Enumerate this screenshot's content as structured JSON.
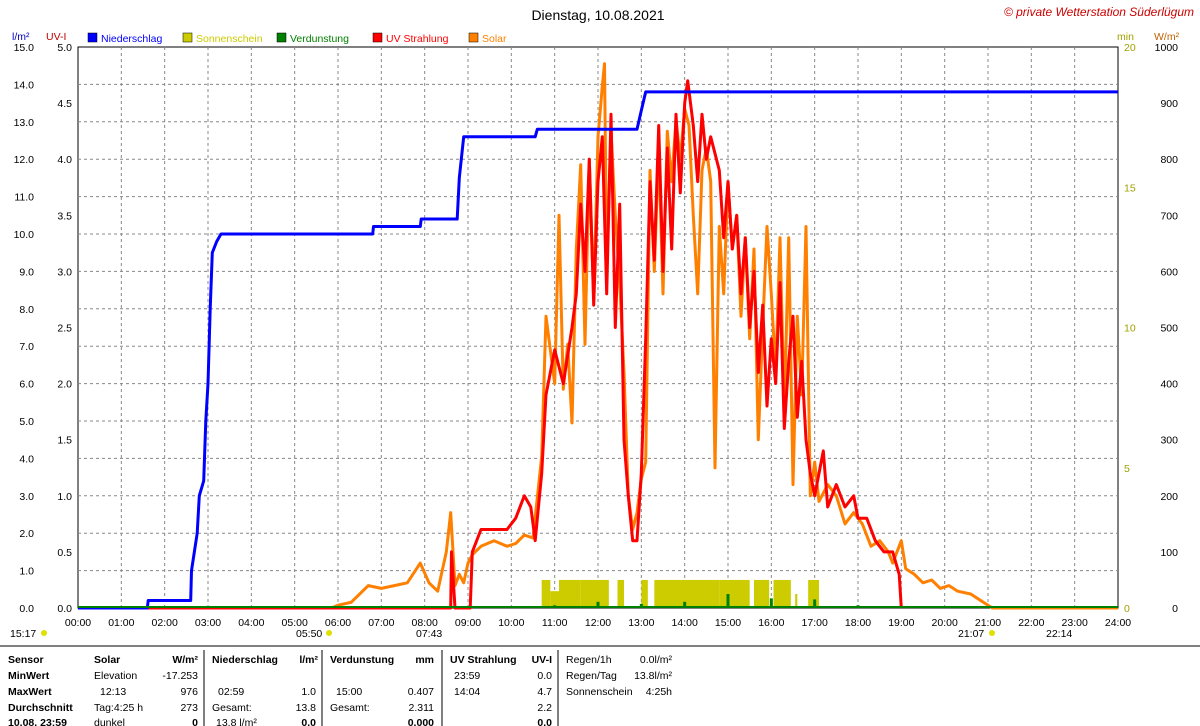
{
  "header": {
    "title": "Dienstag, 10.08.2021",
    "copyright": "© private Wetterstation Süderlügum"
  },
  "axes": {
    "left1_unit": "l/m²",
    "left2_unit": "UV-I",
    "right1_unit": "min",
    "right2_unit": "W/m²",
    "left1_ticks": [
      "0.0",
      "1.0",
      "2.0",
      "3.0",
      "4.0",
      "5.0",
      "6.0",
      "7.0",
      "8.0",
      "9.0",
      "10.0",
      "11.0",
      "12.0",
      "13.0",
      "14.0",
      "15.0"
    ],
    "left2_ticks": [
      "0.0",
      "0.5",
      "1.0",
      "1.5",
      "2.0",
      "2.5",
      "3.0",
      "3.5",
      "4.0",
      "4.5",
      "5.0"
    ],
    "right1_ticks": [
      "0",
      "5",
      "10",
      "15",
      "20"
    ],
    "right2_ticks": [
      "0",
      "100",
      "200",
      "300",
      "400",
      "500",
      "600",
      "700",
      "800",
      "900",
      "1000"
    ],
    "x_ticks": [
      "00:00",
      "01:00",
      "02:00",
      "03:00",
      "04:00",
      "05:00",
      "06:00",
      "07:00",
      "08:00",
      "09:00",
      "10:00",
      "11:00",
      "12:00",
      "13:00",
      "14:00",
      "15:00",
      "16:00",
      "17:00",
      "18:00",
      "19:00",
      "20:00",
      "21:00",
      "22:00",
      "23:00",
      "24:00"
    ]
  },
  "legend": [
    {
      "label": "Niederschlag",
      "color": "#0000ff"
    },
    {
      "label": "Sonnenschein",
      "color": "#cccc00"
    },
    {
      "label": "Verdunstung",
      "color": "#008000"
    },
    {
      "label": "UV Strahlung",
      "color": "#ff0000"
    },
    {
      "label": "Solar",
      "color": "#ff8000"
    }
  ],
  "markers": {
    "moonrise": "15:17",
    "sunrise": "05:50",
    "twilight": "07:43",
    "sunset": "21:07",
    "moonset": "22:14"
  },
  "table": {
    "col_solar": {
      "title": "Solar",
      "unit": "W/m²",
      "rows": [
        [
          "Elevation",
          "-17.253"
        ],
        [
          "12:13",
          "976"
        ],
        [
          "Tag:4:25 h",
          "273"
        ],
        [
          "dunkel",
          "0"
        ]
      ]
    },
    "col_rain": {
      "title": "Niederschlag",
      "unit": "l/m²",
      "rows": [
        [
          "",
          ""
        ],
        [
          "02:59",
          "1.0"
        ],
        [
          "Gesamt:",
          "13.8"
        ],
        [
          "13.8 l/m²",
          "0.0"
        ]
      ]
    },
    "col_evap": {
      "title": "Verdunstung",
      "unit": "mm",
      "rows": [
        [
          "",
          ""
        ],
        [
          "15:00",
          "0.407"
        ],
        [
          "Gesamt:",
          "2.311"
        ],
        [
          "",
          "0.000"
        ]
      ]
    },
    "col_uv": {
      "title": "UV Strahlung",
      "unit": "UV-I",
      "rows": [
        [
          "23:59",
          "0.0"
        ],
        [
          "14:04",
          "4.7"
        ],
        [
          "",
          "2.2"
        ],
        [
          "",
          "0.0"
        ]
      ]
    },
    "col_info": {
      "rows": [
        [
          "Regen/1h",
          "0.0l/m²"
        ],
        [
          "Regen/Tag",
          "13.8l/m²"
        ],
        [
          "Sonnenschein",
          "4:25h"
        ]
      ]
    },
    "row_labels": [
      "Sensor",
      "MinWert",
      "MaxWert",
      "Durchschnitt",
      "10.08. 23:59"
    ]
  },
  "chart_data": {
    "type": "line",
    "title": "Dienstag, 10.08.2021",
    "x_unit": "hour",
    "xlim": [
      0,
      24
    ],
    "series": [
      {
        "name": "Niederschlag",
        "unit": "l/m²",
        "color": "#0000ff",
        "ylim": [
          0,
          15
        ],
        "points": [
          [
            0,
            0
          ],
          [
            1.6,
            0
          ],
          [
            1.62,
            0.2
          ],
          [
            2.6,
            0.2
          ],
          [
            2.62,
            1.0
          ],
          [
            2.75,
            2.0
          ],
          [
            2.8,
            3.0
          ],
          [
            2.9,
            3.4
          ],
          [
            2.95,
            5.0
          ],
          [
            3.0,
            6.0
          ],
          [
            3.05,
            8.0
          ],
          [
            3.1,
            9.5
          ],
          [
            3.2,
            9.8
          ],
          [
            3.3,
            10.0
          ],
          [
            6.8,
            10.0
          ],
          [
            6.82,
            10.2
          ],
          [
            7.9,
            10.2
          ],
          [
            7.92,
            10.4
          ],
          [
            8.75,
            10.4
          ],
          [
            8.8,
            11.5
          ],
          [
            8.9,
            12.6
          ],
          [
            10.55,
            12.6
          ],
          [
            10.6,
            12.8
          ],
          [
            12.9,
            12.8
          ],
          [
            13.0,
            13.3
          ],
          [
            13.1,
            13.8
          ],
          [
            24,
            13.8
          ]
        ]
      },
      {
        "name": "UV Strahlung",
        "unit": "UV-I",
        "color": "#ff0000",
        "ylim": [
          0,
          5
        ],
        "points": [
          [
            0,
            0
          ],
          [
            8.6,
            0
          ],
          [
            8.62,
            0.5
          ],
          [
            8.7,
            0
          ],
          [
            9.05,
            0
          ],
          [
            9.1,
            0.5
          ],
          [
            9.3,
            0.7
          ],
          [
            9.9,
            0.7
          ],
          [
            10.1,
            0.8
          ],
          [
            10.3,
            1.0
          ],
          [
            10.45,
            0.9
          ],
          [
            10.55,
            0.6
          ],
          [
            10.7,
            1.2
          ],
          [
            10.8,
            1.9
          ],
          [
            11.0,
            2.3
          ],
          [
            11.2,
            2.0
          ],
          [
            11.4,
            2.5
          ],
          [
            11.5,
            2.8
          ],
          [
            11.6,
            3.6
          ],
          [
            11.7,
            3.0
          ],
          [
            11.8,
            4.0
          ],
          [
            11.9,
            2.7
          ],
          [
            12.0,
            3.8
          ],
          [
            12.1,
            4.2
          ],
          [
            12.2,
            2.8
          ],
          [
            12.3,
            4.4
          ],
          [
            12.4,
            2.5
          ],
          [
            12.5,
            3.6
          ],
          [
            12.6,
            1.5
          ],
          [
            12.7,
            1.0
          ],
          [
            12.8,
            0.6
          ],
          [
            12.9,
            0.6
          ],
          [
            13.0,
            1.2
          ],
          [
            13.1,
            2.4
          ],
          [
            13.2,
            3.8
          ],
          [
            13.3,
            3.1
          ],
          [
            13.4,
            4.3
          ],
          [
            13.5,
            3.0
          ],
          [
            13.6,
            4.1
          ],
          [
            13.7,
            3.2
          ],
          [
            13.8,
            4.4
          ],
          [
            13.9,
            3.7
          ],
          [
            14.0,
            4.5
          ],
          [
            14.07,
            4.7
          ],
          [
            14.2,
            4.3
          ],
          [
            14.3,
            3.8
          ],
          [
            14.4,
            4.4
          ],
          [
            14.5,
            4.0
          ],
          [
            14.6,
            4.2
          ],
          [
            14.8,
            3.9
          ],
          [
            14.9,
            3.3
          ],
          [
            15.0,
            3.8
          ],
          [
            15.1,
            3.2
          ],
          [
            15.2,
            3.5
          ],
          [
            15.3,
            2.8
          ],
          [
            15.4,
            3.3
          ],
          [
            15.5,
            2.5
          ],
          [
            15.6,
            3.0
          ],
          [
            15.7,
            2.1
          ],
          [
            15.8,
            2.7
          ],
          [
            15.9,
            1.8
          ],
          [
            16.0,
            2.4
          ],
          [
            16.1,
            2.0
          ],
          [
            16.2,
            2.9
          ],
          [
            16.3,
            1.6
          ],
          [
            16.4,
            2.2
          ],
          [
            16.5,
            2.6
          ],
          [
            16.6,
            1.7
          ],
          [
            16.7,
            2.2
          ],
          [
            16.8,
            1.5
          ],
          [
            16.9,
            1.2
          ],
          [
            17.0,
            1.0
          ],
          [
            17.2,
            1.4
          ],
          [
            17.3,
            0.9
          ],
          [
            17.5,
            1.1
          ],
          [
            17.7,
            0.9
          ],
          [
            17.9,
            1.0
          ],
          [
            18.0,
            0.8
          ],
          [
            18.2,
            0.8
          ],
          [
            18.4,
            0.6
          ],
          [
            18.6,
            0.5
          ],
          [
            18.8,
            0.5
          ],
          [
            18.95,
            0.3
          ],
          [
            19.0,
            0
          ]
        ]
      },
      {
        "name": "Solar",
        "unit": "W/m²",
        "color": "#ff8000",
        "ylim": [
          0,
          1000
        ],
        "points": [
          [
            0,
            0
          ],
          [
            5.85,
            0
          ],
          [
            6.0,
            5
          ],
          [
            6.3,
            10
          ],
          [
            6.5,
            25
          ],
          [
            6.7,
            40
          ],
          [
            7.0,
            35
          ],
          [
            7.3,
            40
          ],
          [
            7.6,
            45
          ],
          [
            7.9,
            80
          ],
          [
            8.1,
            45
          ],
          [
            8.3,
            30
          ],
          [
            8.5,
            100
          ],
          [
            8.6,
            170
          ],
          [
            8.7,
            40
          ],
          [
            8.8,
            60
          ],
          [
            8.9,
            45
          ],
          [
            9.0,
            80
          ],
          [
            9.1,
            95
          ],
          [
            9.3,
            110
          ],
          [
            9.6,
            120
          ],
          [
            9.9,
            110
          ],
          [
            10.1,
            115
          ],
          [
            10.3,
            130
          ],
          [
            10.5,
            125
          ],
          [
            10.7,
            270
          ],
          [
            10.8,
            520
          ],
          [
            11.0,
            400
          ],
          [
            11.1,
            700
          ],
          [
            11.2,
            390
          ],
          [
            11.3,
            470
          ],
          [
            11.4,
            330
          ],
          [
            11.5,
            640
          ],
          [
            11.6,
            790
          ],
          [
            11.7,
            470
          ],
          [
            11.8,
            800
          ],
          [
            11.9,
            550
          ],
          [
            12.0,
            840
          ],
          [
            12.1,
            930
          ],
          [
            12.15,
            970
          ],
          [
            12.2,
            600
          ],
          [
            12.3,
            850
          ],
          [
            12.4,
            700
          ],
          [
            12.5,
            580
          ],
          [
            12.6,
            420
          ],
          [
            12.7,
            200
          ],
          [
            12.8,
            140
          ],
          [
            12.9,
            170
          ],
          [
            13.0,
            230
          ],
          [
            13.1,
            260
          ],
          [
            13.2,
            780
          ],
          [
            13.3,
            600
          ],
          [
            13.4,
            820
          ],
          [
            13.5,
            560
          ],
          [
            13.6,
            850
          ],
          [
            13.7,
            760
          ],
          [
            13.8,
            870
          ],
          [
            13.9,
            800
          ],
          [
            14.0,
            890
          ],
          [
            14.1,
            860
          ],
          [
            14.2,
            700
          ],
          [
            14.3,
            560
          ],
          [
            14.4,
            780
          ],
          [
            14.5,
            820
          ],
          [
            14.6,
            760
          ],
          [
            14.7,
            250
          ],
          [
            14.8,
            680
          ],
          [
            14.9,
            560
          ],
          [
            15.0,
            760
          ],
          [
            15.1,
            640
          ],
          [
            15.2,
            700
          ],
          [
            15.3,
            520
          ],
          [
            15.4,
            660
          ],
          [
            15.5,
            480
          ],
          [
            15.6,
            640
          ],
          [
            15.7,
            300
          ],
          [
            15.8,
            500
          ],
          [
            15.9,
            680
          ],
          [
            16.0,
            560
          ],
          [
            16.1,
            420
          ],
          [
            16.2,
            660
          ],
          [
            16.3,
            350
          ],
          [
            16.4,
            660
          ],
          [
            16.5,
            220
          ],
          [
            16.6,
            520
          ],
          [
            16.7,
            380
          ],
          [
            16.8,
            680
          ],
          [
            16.9,
            200
          ],
          [
            17.0,
            260
          ],
          [
            17.1,
            190
          ],
          [
            17.3,
            220
          ],
          [
            17.5,
            200
          ],
          [
            17.7,
            150
          ],
          [
            17.9,
            170
          ],
          [
            18.1,
            150
          ],
          [
            18.3,
            110
          ],
          [
            18.5,
            120
          ],
          [
            18.7,
            100
          ],
          [
            18.8,
            80
          ],
          [
            19.0,
            120
          ],
          [
            19.1,
            70
          ],
          [
            19.3,
            60
          ],
          [
            19.5,
            45
          ],
          [
            19.7,
            50
          ],
          [
            19.9,
            35
          ],
          [
            20.1,
            40
          ],
          [
            20.3,
            30
          ],
          [
            20.6,
            25
          ],
          [
            20.8,
            15
          ],
          [
            21.0,
            5
          ],
          [
            21.1,
            0
          ],
          [
            24,
            0
          ]
        ]
      },
      {
        "name": "Sonnenschein",
        "unit": "min",
        "color": "#cccc00",
        "ylim": [
          0,
          20
        ],
        "bars": [
          [
            10.7,
            10.9,
            1
          ],
          [
            10.9,
            11.1,
            0.6
          ],
          [
            11.1,
            11.6,
            1
          ],
          [
            11.6,
            12.0,
            1
          ],
          [
            12.0,
            12.25,
            1
          ],
          [
            12.45,
            12.6,
            1
          ],
          [
            13.0,
            13.15,
            1
          ],
          [
            13.3,
            14.8,
            1
          ],
          [
            14.8,
            15.0,
            1
          ],
          [
            15.0,
            15.5,
            1
          ],
          [
            15.6,
            15.95,
            1
          ],
          [
            16.05,
            16.45,
            1
          ],
          [
            16.55,
            16.6,
            0.5
          ],
          [
            16.85,
            17.1,
            1
          ]
        ]
      },
      {
        "name": "Verdunstung",
        "unit": "mm",
        "color": "#008000",
        "spikes": [
          [
            11.0,
            0.08
          ],
          [
            12.0,
            0.18
          ],
          [
            13.0,
            0.12
          ],
          [
            14.0,
            0.18
          ],
          [
            15.0,
            0.407
          ],
          [
            16.0,
            0.28
          ],
          [
            17.0,
            0.25
          ],
          [
            18.0,
            0.08
          ],
          [
            19.0,
            0.04
          ]
        ]
      }
    ]
  }
}
